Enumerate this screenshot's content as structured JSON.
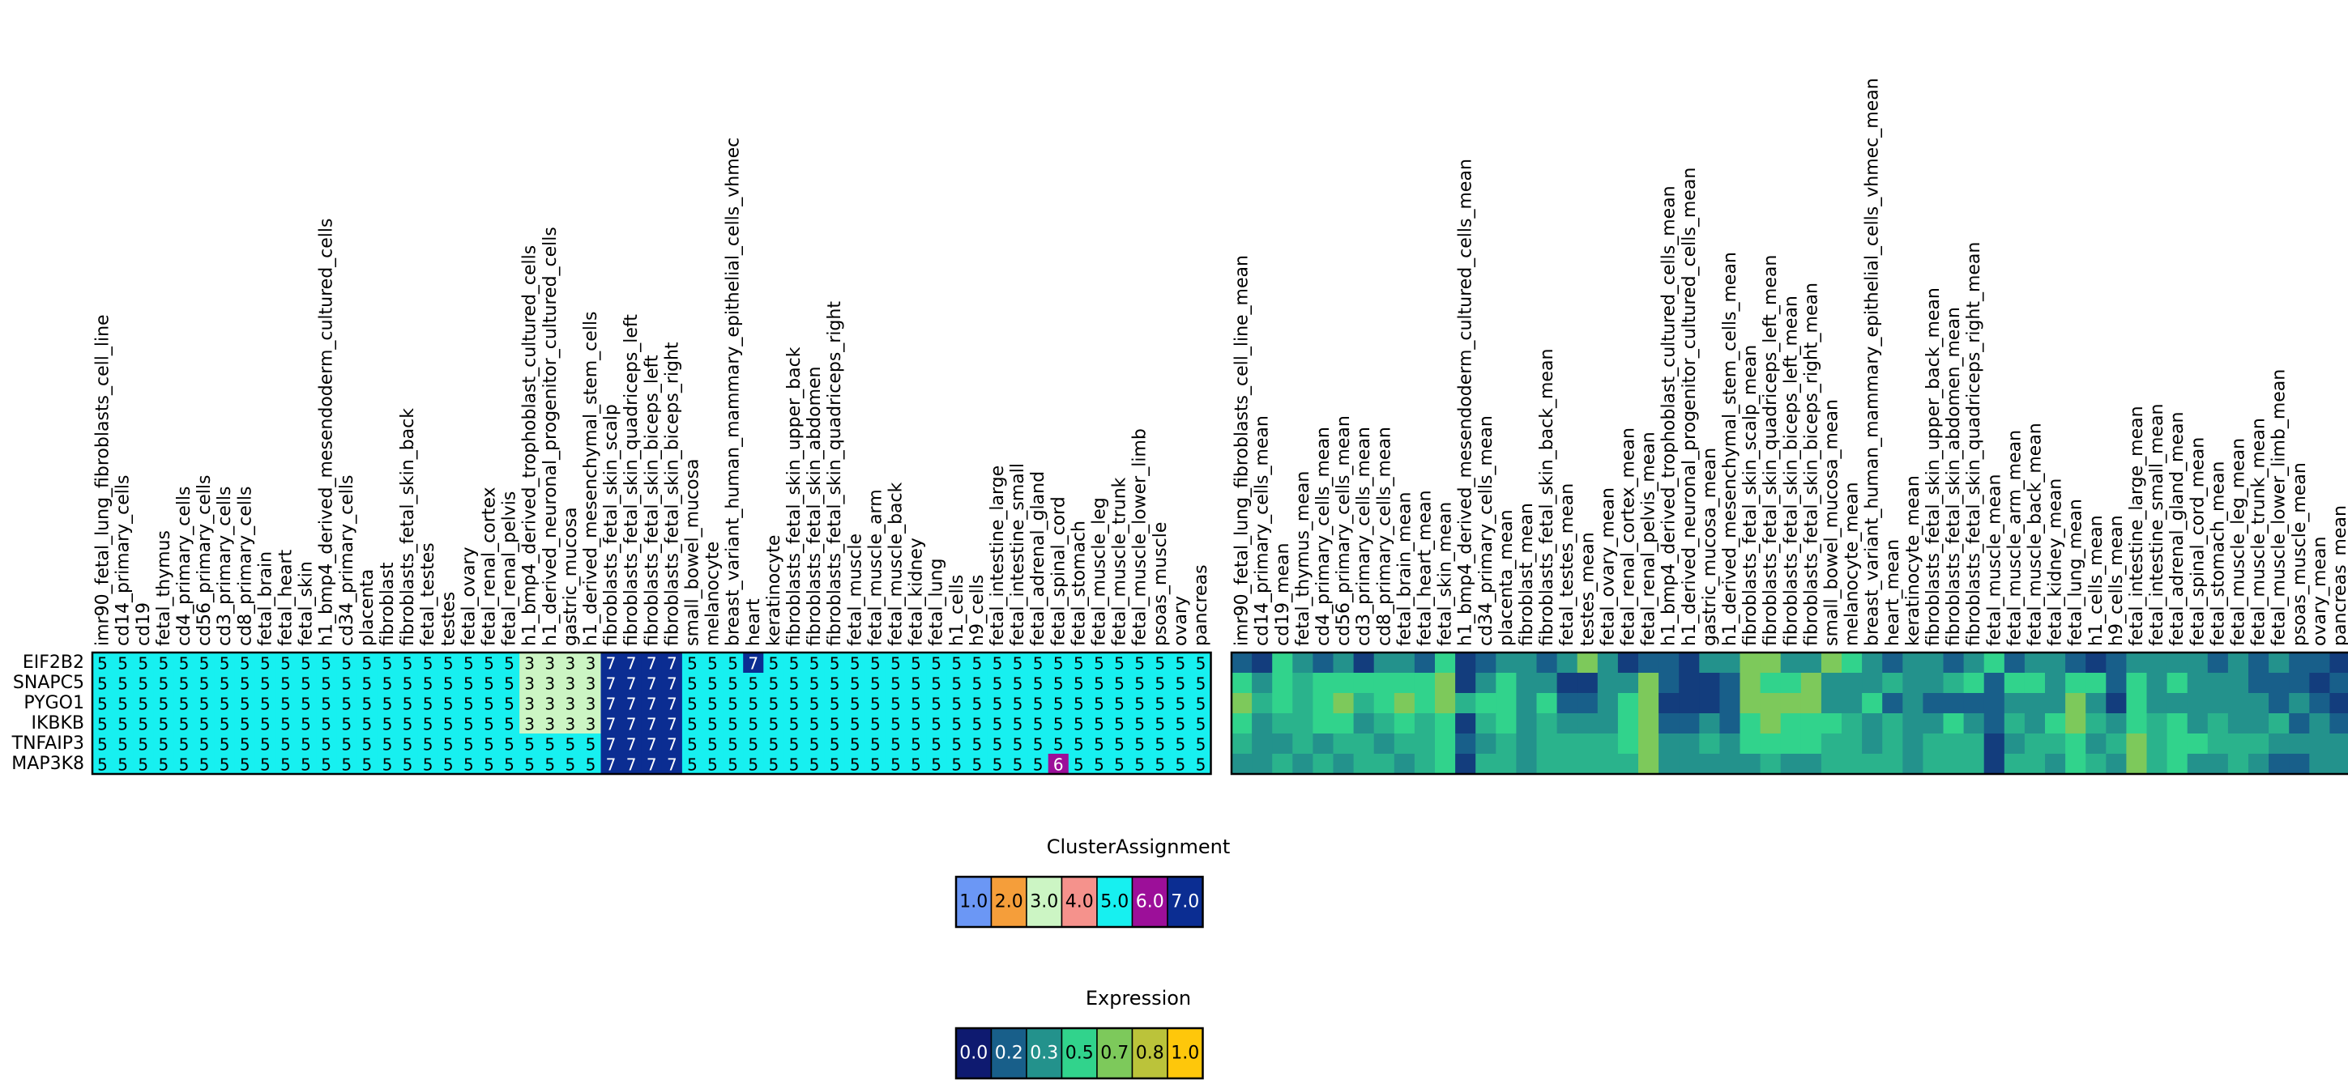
{
  "chart_data": [
    {
      "type": "heatmap",
      "name": "cluster_assignment",
      "rows": [
        "EIF2B2",
        "SNAPC5",
        "PYGO1",
        "IKBKB",
        "TNFAIP3",
        "MAP3K8"
      ],
      "columns": [
        "imr90_fetal_lung_fibroblasts_cell_line",
        "cd14_primary_cells",
        "cd19",
        "fetal_thymus",
        "cd4_primary_cells",
        "cd56_primary_cells",
        "cd3_primary_cells",
        "cd8_primary_cells",
        "fetal_brain",
        "fetal_heart",
        "fetal_skin",
        "h1_bmp4_derived_mesendoderm_cultured_cells",
        "cd34_primary_cells",
        "placenta",
        "fibroblast",
        "fibroblasts_fetal_skin_back",
        "fetal_testes",
        "testes",
        "fetal_ovary",
        "fetal_renal_cortex",
        "fetal_renal_pelvis",
        "h1_bmp4_derived_trophoblast_cultured_cells",
        "h1_derived_neuronal_progenitor_cultured_cells",
        "gastric_mucosa",
        "h1_derived_mesenchymal_stem_cells",
        "fibroblasts_fetal_skin_scalp",
        "fibroblasts_fetal_skin_quadriceps_left",
        "fibroblasts_fetal_skin_biceps_left",
        "fibroblasts_fetal_skin_biceps_right",
        "small_bowel_mucosa",
        "melanocyte",
        "breast_variant_human_mammary_epithelial_cells_vhmec",
        "heart",
        "keratinocyte",
        "fibroblasts_fetal_skin_upper_back",
        "fibroblasts_fetal_skin_abdomen",
        "fibroblasts_fetal_skin_quadriceps_right",
        "fetal_muscle",
        "fetal_muscle_arm",
        "fetal_muscle_back",
        "fetal_kidney",
        "fetal_lung",
        "h1_cells",
        "h9_cells",
        "fetal_intestine_large",
        "fetal_intestine_small",
        "fetal_adrenal_gland",
        "fetal_spinal_cord",
        "fetal_stomach",
        "fetal_muscle_leg",
        "fetal_muscle_trunk",
        "fetal_muscle_lower_limb",
        "psoas_muscle",
        "ovary",
        "pancreas"
      ],
      "values": [
        [
          5,
          5,
          5,
          5,
          5,
          5,
          5,
          5,
          5,
          5,
          5,
          5,
          5,
          5,
          5,
          5,
          5,
          5,
          5,
          5,
          5,
          3,
          3,
          3,
          3,
          7,
          7,
          7,
          7,
          5,
          5,
          5,
          7,
          5,
          5,
          5,
          5,
          5,
          5,
          5,
          5,
          5,
          5,
          5,
          5,
          5,
          5,
          5,
          5,
          5,
          5,
          5,
          5,
          5,
          5
        ],
        [
          5,
          5,
          5,
          5,
          5,
          5,
          5,
          5,
          5,
          5,
          5,
          5,
          5,
          5,
          5,
          5,
          5,
          5,
          5,
          5,
          5,
          3,
          3,
          3,
          3,
          7,
          7,
          7,
          7,
          5,
          5,
          5,
          5,
          5,
          5,
          5,
          5,
          5,
          5,
          5,
          5,
          5,
          5,
          5,
          5,
          5,
          5,
          5,
          5,
          5,
          5,
          5,
          5,
          5,
          5
        ],
        [
          5,
          5,
          5,
          5,
          5,
          5,
          5,
          5,
          5,
          5,
          5,
          5,
          5,
          5,
          5,
          5,
          5,
          5,
          5,
          5,
          5,
          3,
          3,
          3,
          3,
          7,
          7,
          7,
          7,
          5,
          5,
          5,
          5,
          5,
          5,
          5,
          5,
          5,
          5,
          5,
          5,
          5,
          5,
          5,
          5,
          5,
          5,
          5,
          5,
          5,
          5,
          5,
          5,
          5,
          5
        ],
        [
          5,
          5,
          5,
          5,
          5,
          5,
          5,
          5,
          5,
          5,
          5,
          5,
          5,
          5,
          5,
          5,
          5,
          5,
          5,
          5,
          5,
          3,
          3,
          3,
          3,
          7,
          7,
          7,
          7,
          5,
          5,
          5,
          5,
          5,
          5,
          5,
          5,
          5,
          5,
          5,
          5,
          5,
          5,
          5,
          5,
          5,
          5,
          5,
          5,
          5,
          5,
          5,
          5,
          5,
          5
        ],
        [
          5,
          5,
          5,
          5,
          5,
          5,
          5,
          5,
          5,
          5,
          5,
          5,
          5,
          5,
          5,
          5,
          5,
          5,
          5,
          5,
          5,
          5,
          5,
          5,
          5,
          7,
          7,
          7,
          7,
          5,
          5,
          5,
          5,
          5,
          5,
          5,
          5,
          5,
          5,
          5,
          5,
          5,
          5,
          5,
          5,
          5,
          5,
          5,
          5,
          5,
          5,
          5,
          5,
          5,
          5
        ],
        [
          5,
          5,
          5,
          5,
          5,
          5,
          5,
          5,
          5,
          5,
          5,
          5,
          5,
          5,
          5,
          5,
          5,
          5,
          5,
          5,
          5,
          5,
          5,
          5,
          5,
          7,
          7,
          7,
          7,
          5,
          5,
          5,
          5,
          5,
          5,
          5,
          5,
          5,
          5,
          5,
          5,
          5,
          5,
          5,
          5,
          5,
          5,
          6,
          5,
          5,
          5,
          5,
          5,
          5,
          5
        ]
      ]
    },
    {
      "type": "heatmap",
      "name": "expression",
      "rows": [
        "EIF2B2",
        "SNAPC5",
        "PYGO1",
        "IKBKB",
        "TNFAIP3",
        "MAP3K8"
      ],
      "columns": [
        "imr90_fetal_lung_fibroblasts_cell_line_mean",
        "cd14_primary_cells_mean",
        "cd19_mean",
        "fetal_thymus_mean",
        "cd4_primary_cells_mean",
        "cd56_primary_cells_mean",
        "cd3_primary_cells_mean",
        "cd8_primary_cells_mean",
        "fetal_brain_mean",
        "fetal_heart_mean",
        "fetal_skin_mean",
        "h1_bmp4_derived_mesendoderm_cultured_cells_mean",
        "cd34_primary_cells_mean",
        "placenta_mean",
        "fibroblast_mean",
        "fibroblasts_fetal_skin_back_mean",
        "fetal_testes_mean",
        "testes_mean",
        "fetal_ovary_mean",
        "fetal_renal_cortex_mean",
        "fetal_renal_pelvis_mean",
        "h1_bmp4_derived_trophoblast_cultured_cells_mean",
        "h1_derived_neuronal_progenitor_cultured_cells_mean",
        "gastric_mucosa_mean",
        "h1_derived_mesenchymal_stem_cells_mean",
        "fibroblasts_fetal_skin_scalp_mean",
        "fibroblasts_fetal_skin_quadriceps_left_mean",
        "fibroblasts_fetal_skin_biceps_left_mean",
        "fibroblasts_fetal_skin_biceps_right_mean",
        "small_bowel_mucosa_mean",
        "melanocyte_mean",
        "breast_variant_human_mammary_epithelial_cells_vhmec_mean",
        "heart_mean",
        "keratinocyte_mean",
        "fibroblasts_fetal_skin_upper_back_mean",
        "fibroblasts_fetal_skin_abdomen_mean",
        "fibroblasts_fetal_skin_quadriceps_right_mean",
        "fetal_muscle_mean",
        "fetal_muscle_arm_mean",
        "fetal_muscle_back_mean",
        "fetal_kidney_mean",
        "fetal_lung_mean",
        "h1_cells_mean",
        "h9_cells_mean",
        "fetal_intestine_large_mean",
        "fetal_intestine_small_mean",
        "fetal_adrenal_gland_mean",
        "fetal_spinal_cord_mean",
        "fetal_stomach_mean",
        "fetal_muscle_leg_mean",
        "fetal_muscle_trunk_mean",
        "fetal_muscle_lower_limb_mean",
        "psoas_muscle_mean",
        "ovary_mean",
        "pancreas_mean"
      ],
      "values": [
        [
          0.2,
          0.1,
          0.5,
          0.3,
          0.2,
          0.3,
          0.1,
          0.3,
          0.3,
          0.2,
          0.5,
          0.1,
          0.2,
          0.3,
          0.3,
          0.2,
          0.3,
          0.7,
          0.3,
          0.1,
          0.2,
          0.2,
          0.1,
          0.3,
          0.3,
          0.7,
          0.7,
          0.3,
          0.3,
          0.7,
          0.5,
          0.3,
          0.2,
          0.3,
          0.3,
          0.2,
          0.3,
          0.5,
          0.2,
          0.3,
          0.3,
          0.2,
          0.1,
          0.2,
          0.3,
          0.3,
          0.3,
          0.3,
          0.2,
          0.3,
          0.2,
          0.3,
          0.2,
          0.2,
          0.1
        ],
        [
          0.5,
          0.3,
          0.5,
          0.4,
          0.5,
          0.5,
          0.5,
          0.5,
          0.5,
          0.5,
          0.7,
          0.1,
          0.3,
          0.5,
          0.3,
          0.3,
          0.1,
          0.1,
          0.3,
          0.3,
          0.7,
          0.2,
          0.1,
          0.1,
          0.2,
          0.7,
          0.5,
          0.5,
          0.7,
          0.3,
          0.3,
          0.3,
          0.4,
          0.3,
          0.3,
          0.4,
          0.5,
          0.2,
          0.5,
          0.5,
          0.3,
          0.5,
          0.5,
          0.2,
          0.5,
          0.3,
          0.5,
          0.3,
          0.3,
          0.3,
          0.2,
          0.2,
          0.2,
          0.1,
          0.2
        ],
        [
          0.7,
          0.4,
          0.5,
          0.4,
          0.5,
          0.7,
          0.4,
          0.5,
          0.7,
          0.5,
          0.7,
          0.4,
          0.5,
          0.5,
          0.3,
          0.5,
          0.2,
          0.2,
          0.3,
          0.5,
          0.7,
          0.1,
          0.1,
          0.1,
          0.2,
          0.7,
          0.7,
          0.7,
          0.7,
          0.3,
          0.3,
          0.5,
          0.2,
          0.3,
          0.2,
          0.2,
          0.2,
          0.2,
          0.3,
          0.3,
          0.3,
          0.7,
          0.3,
          0.1,
          0.5,
          0.3,
          0.3,
          0.3,
          0.3,
          0.3,
          0.3,
          0.2,
          0.3,
          0.2,
          0.1
        ],
        [
          0.5,
          0.3,
          0.4,
          0.4,
          0.5,
          0.5,
          0.3,
          0.4,
          0.5,
          0.4,
          0.5,
          0.1,
          0.4,
          0.5,
          0.3,
          0.4,
          0.3,
          0.3,
          0.3,
          0.5,
          0.7,
          0.2,
          0.2,
          0.3,
          0.2,
          0.5,
          0.7,
          0.5,
          0.5,
          0.5,
          0.4,
          0.3,
          0.4,
          0.3,
          0.3,
          0.5,
          0.3,
          0.2,
          0.4,
          0.3,
          0.5,
          0.7,
          0.4,
          0.3,
          0.5,
          0.4,
          0.5,
          0.3,
          0.4,
          0.3,
          0.3,
          0.4,
          0.2,
          0.3,
          0.2
        ],
        [
          0.4,
          0.3,
          0.3,
          0.4,
          0.3,
          0.4,
          0.4,
          0.3,
          0.4,
          0.4,
          0.5,
          0.2,
          0.3,
          0.4,
          0.3,
          0.4,
          0.4,
          0.4,
          0.4,
          0.5,
          0.7,
          0.3,
          0.3,
          0.4,
          0.3,
          0.5,
          0.5,
          0.5,
          0.5,
          0.4,
          0.4,
          0.3,
          0.4,
          0.3,
          0.4,
          0.4,
          0.4,
          0.1,
          0.3,
          0.4,
          0.4,
          0.5,
          0.3,
          0.4,
          0.7,
          0.4,
          0.5,
          0.5,
          0.4,
          0.4,
          0.4,
          0.3,
          0.3,
          0.3,
          0.3
        ],
        [
          0.3,
          0.3,
          0.4,
          0.3,
          0.4,
          0.3,
          0.4,
          0.4,
          0.3,
          0.4,
          0.5,
          0.1,
          0.4,
          0.4,
          0.3,
          0.4,
          0.4,
          0.4,
          0.4,
          0.4,
          0.7,
          0.3,
          0.3,
          0.3,
          0.3,
          0.3,
          0.4,
          0.3,
          0.3,
          0.4,
          0.4,
          0.4,
          0.4,
          0.3,
          0.4,
          0.4,
          0.4,
          0.1,
          0.4,
          0.4,
          0.3,
          0.5,
          0.4,
          0.3,
          0.7,
          0.4,
          0.5,
          0.3,
          0.3,
          0.4,
          0.3,
          0.2,
          0.2,
          0.3,
          0.3
        ]
      ]
    }
  ],
  "legends": {
    "cluster": {
      "title": "ClusterAssignment",
      "items": [
        {
          "label": "1.0",
          "color": "#6b97f5"
        },
        {
          "label": "2.0",
          "color": "#f59e3a"
        },
        {
          "label": "3.0",
          "color": "#ccf5c4"
        },
        {
          "label": "4.0",
          "color": "#f5928c"
        },
        {
          "label": "5.0",
          "color": "#17f0f0"
        },
        {
          "label": "6.0",
          "color": "#9c0f99"
        },
        {
          "label": "7.0",
          "color": "#0b2d92"
        }
      ]
    },
    "expression": {
      "title": "Expression",
      "items": [
        {
          "label": "0.0",
          "color": "#0e1a70"
        },
        {
          "label": "0.2",
          "color": "#185f8a"
        },
        {
          "label": "0.3",
          "color": "#23928c"
        },
        {
          "label": "0.5",
          "color": "#31d38c"
        },
        {
          "label": "0.7",
          "color": "#7dc95b"
        },
        {
          "label": "0.8",
          "color": "#bbc33a"
        },
        {
          "label": "1.0",
          "color": "#fec70b"
        }
      ]
    }
  }
}
